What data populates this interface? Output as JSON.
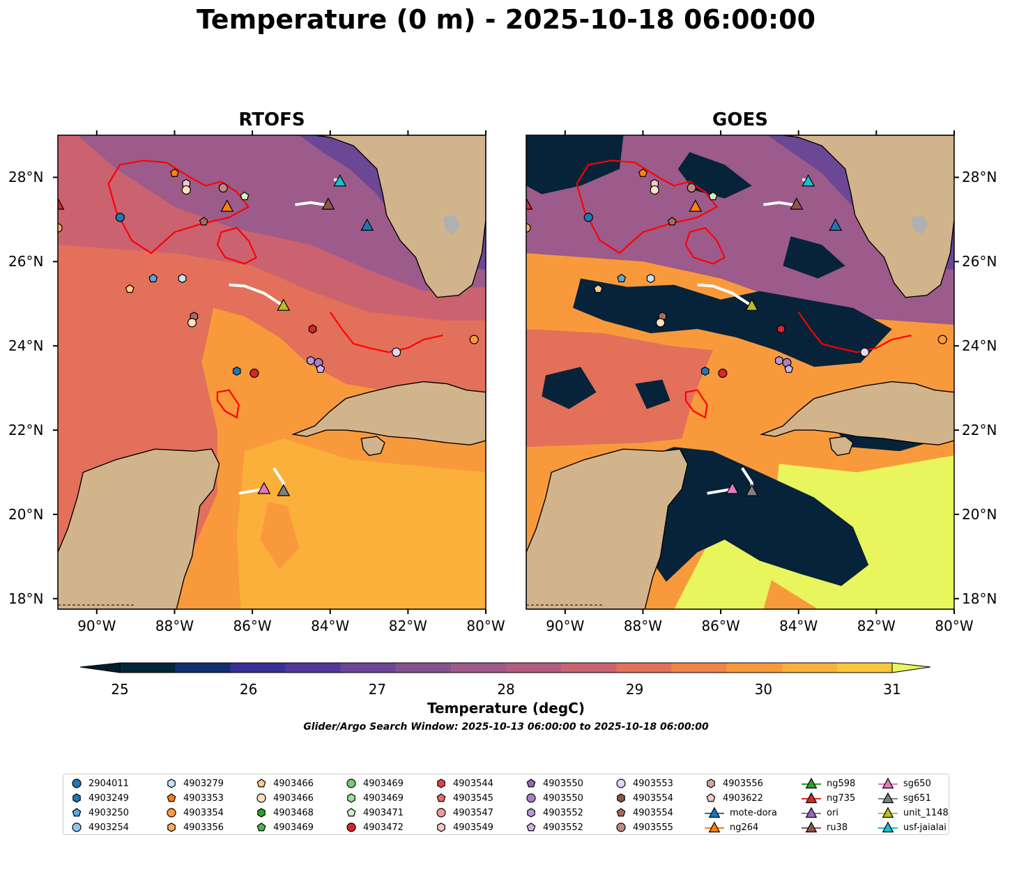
{
  "title": "Temperature (0 m) - 2025-10-18 06:00:00",
  "panels": [
    {
      "title": "RTOFS"
    },
    {
      "title": "GOES"
    }
  ],
  "axes": {
    "lon_labels": [
      "90°W",
      "88°W",
      "86°W",
      "84°W",
      "82°W",
      "80°W"
    ],
    "lat_labels": [
      "28°N",
      "26°N",
      "24°N",
      "22°N",
      "20°N",
      "18°N"
    ],
    "lon_range": [
      -91.0,
      -80.0
    ],
    "lat_range": [
      17.75,
      29.0
    ]
  },
  "colorbar": {
    "label": "Temperature (degC)",
    "ticks": [
      "25",
      "26",
      "27",
      "28",
      "29",
      "30",
      "31"
    ],
    "range": [
      25,
      31
    ],
    "step": 0.5,
    "colors": [
      "#03263a",
      "#123070",
      "#38309a",
      "#53389c",
      "#6c4796",
      "#835390",
      "#9c5b8a",
      "#b35d80",
      "#cb6270",
      "#e3705a",
      "#f08547",
      "#f89a3c",
      "#fab03a",
      "#fbc73c"
    ],
    "under_color": "#031d2c",
    "over_color": "#e9f55c"
  },
  "search_window": "Glider/Argo Search Window: 2025-10-13 06:00:00 to 2025-10-18 06:00:00",
  "colors": {
    "land": "#d2b48c",
    "lake": "#b0b0b0",
    "cloud": "#06233a",
    "front": "#ff0000",
    "track": "#ffffff"
  },
  "legend": [
    {
      "label": "2904011",
      "marker": "circle",
      "color": "#1f77b4"
    },
    {
      "label": "4903249",
      "marker": "hexagon",
      "color": "#1f77b4"
    },
    {
      "label": "4903250",
      "marker": "pentagon",
      "color": "#5da5dc"
    },
    {
      "label": "4903254",
      "marker": "circle",
      "color": "#8cc6ef"
    },
    {
      "label": "4903279",
      "marker": "hexagon",
      "color": "#c6e2f7"
    },
    {
      "label": "4903353",
      "marker": "pentagon",
      "color": "#ff7f0e"
    },
    {
      "label": "4903354",
      "marker": "circle",
      "color": "#ff9a3c"
    },
    {
      "label": "4903356",
      "marker": "hexagon",
      "color": "#ffad5c"
    },
    {
      "label": "4903466",
      "marker": "pentagon",
      "color": "#ffcc8c"
    },
    {
      "label": "4903466",
      "marker": "circle",
      "color": "#ffe0c0"
    },
    {
      "label": "4903468",
      "marker": "hexagon",
      "color": "#2ca02c"
    },
    {
      "label": "4903469",
      "marker": "pentagon",
      "color": "#4cb84c"
    },
    {
      "label": "4903469",
      "marker": "circle",
      "color": "#72cc72"
    },
    {
      "label": "4903469",
      "marker": "hexagon",
      "color": "#9ee09e"
    },
    {
      "label": "4903471",
      "marker": "pentagon",
      "color": "#d0f5c8"
    },
    {
      "label": "4903472",
      "marker": "circle",
      "color": "#d62728"
    },
    {
      "label": "4903544",
      "marker": "hexagon",
      "color": "#e04448"
    },
    {
      "label": "4903545",
      "marker": "pentagon",
      "color": "#ec6a6a"
    },
    {
      "label": "4903547",
      "marker": "circle",
      "color": "#f29a9a"
    },
    {
      "label": "4903549",
      "marker": "hexagon",
      "color": "#fac8c8"
    },
    {
      "label": "4903550",
      "marker": "pentagon",
      "color": "#9467bd"
    },
    {
      "label": "4903550",
      "marker": "circle",
      "color": "#a57fcb"
    },
    {
      "label": "4903552",
      "marker": "hexagon",
      "color": "#b899d8"
    },
    {
      "label": "4903552",
      "marker": "pentagon",
      "color": "#ceb4e6"
    },
    {
      "label": "4903553",
      "marker": "circle",
      "color": "#e6d4f5"
    },
    {
      "label": "4903554",
      "marker": "hexagon",
      "color": "#8c564b"
    },
    {
      "label": "4903554",
      "marker": "pentagon",
      "color": "#a66c60"
    },
    {
      "label": "4903555",
      "marker": "circle",
      "color": "#c08a7e"
    },
    {
      "label": "4903556",
      "marker": "hexagon",
      "color": "#d8aa9e"
    },
    {
      "label": "4903622",
      "marker": "pentagon",
      "color": "#f4cdc4"
    },
    {
      "label": "mote-dora",
      "marker": "triangle-line",
      "color": "#1f77b4"
    },
    {
      "label": "ng264",
      "marker": "triangle-line",
      "color": "#ff7f0e"
    },
    {
      "label": "ng598",
      "marker": "triangle-line",
      "color": "#2ca02c"
    },
    {
      "label": "ng735",
      "marker": "triangle-line",
      "color": "#d62728"
    },
    {
      "label": "ori",
      "marker": "triangle-line",
      "color": "#9467bd"
    },
    {
      "label": "ru38",
      "marker": "triangle-line",
      "color": "#8c564b"
    },
    {
      "label": "sg650",
      "marker": "triangle-line",
      "color": "#e377c2"
    },
    {
      "label": "sg651",
      "marker": "triangle-line",
      "color": "#7f7f7f"
    },
    {
      "label": "unit_1148",
      "marker": "triangle-line",
      "color": "#bcbd22"
    },
    {
      "label": "usf-jaialai",
      "marker": "triangle-line",
      "color": "#17becf"
    }
  ],
  "argo_floats": [
    {
      "lon": -89.4,
      "lat": 27.05,
      "marker": "circle",
      "color": "#1f77b4"
    },
    {
      "lon": -91.0,
      "lat": 26.8,
      "marker": "circle",
      "color": "#ffad5c"
    },
    {
      "lon": -88.0,
      "lat": 28.1,
      "marker": "pentagon",
      "color": "#ff7f0e"
    },
    {
      "lon": -87.7,
      "lat": 27.85,
      "marker": "hexagon",
      "color": "#fac8c8"
    },
    {
      "lon": -87.7,
      "lat": 27.7,
      "marker": "circle",
      "color": "#ffe0c0"
    },
    {
      "lon": -87.25,
      "lat": 26.95,
      "marker": "pentagon",
      "color": "#a66c60"
    },
    {
      "lon": -86.75,
      "lat": 27.75,
      "marker": "circle",
      "color": "#c08a7e"
    },
    {
      "lon": -86.2,
      "lat": 27.55,
      "marker": "pentagon",
      "color": "#d0f5c8"
    },
    {
      "lon": -89.15,
      "lat": 25.35,
      "marker": "pentagon",
      "color": "#ffcc8c"
    },
    {
      "lon": -88.55,
      "lat": 25.6,
      "marker": "pentagon",
      "color": "#5da5dc"
    },
    {
      "lon": -87.8,
      "lat": 25.6,
      "marker": "hexagon",
      "color": "#c6e2f7"
    },
    {
      "lon": -87.5,
      "lat": 24.7,
      "marker": "hexagon",
      "color": "#a66c60"
    },
    {
      "lon": -87.55,
      "lat": 24.55,
      "marker": "circle",
      "color": "#ffe0c0"
    },
    {
      "lon": -84.45,
      "lat": 24.4,
      "marker": "hexagon",
      "color": "#d62728"
    },
    {
      "lon": -84.5,
      "lat": 23.65,
      "marker": "hexagon",
      "color": "#b899d8"
    },
    {
      "lon": -84.3,
      "lat": 23.6,
      "marker": "circle",
      "color": "#a57fcb"
    },
    {
      "lon": -84.25,
      "lat": 23.45,
      "marker": "pentagon",
      "color": "#ceb4e6"
    },
    {
      "lon": -86.4,
      "lat": 23.4,
      "marker": "hexagon",
      "color": "#1f77b4"
    },
    {
      "lon": -85.95,
      "lat": 23.35,
      "marker": "circle",
      "color": "#d62728"
    },
    {
      "lon": -82.3,
      "lat": 23.85,
      "marker": "circle",
      "color": "#e6d4f5"
    },
    {
      "lon": -80.3,
      "lat": 24.15,
      "marker": "circle",
      "color": "#ff9a3c"
    }
  ],
  "gliders": [
    {
      "lon": -91.0,
      "lat": 27.35,
      "color": "#d62728"
    },
    {
      "lon": -86.65,
      "lat": 27.3,
      "color": "#ff7f0e"
    },
    {
      "lon": -84.05,
      "lat": 27.35,
      "color": "#8c564b"
    },
    {
      "lon": -83.75,
      "lat": 27.9,
      "color": "#17becf"
    },
    {
      "lon": -83.05,
      "lat": 26.85,
      "color": "#1f77b4"
    },
    {
      "lon": -85.2,
      "lat": 24.95,
      "color": "#bcbd22"
    },
    {
      "lon": -85.7,
      "lat": 20.6,
      "color": "#e377c2"
    },
    {
      "lon": -85.2,
      "lat": 20.55,
      "color": "#7f7f7f"
    }
  ]
}
